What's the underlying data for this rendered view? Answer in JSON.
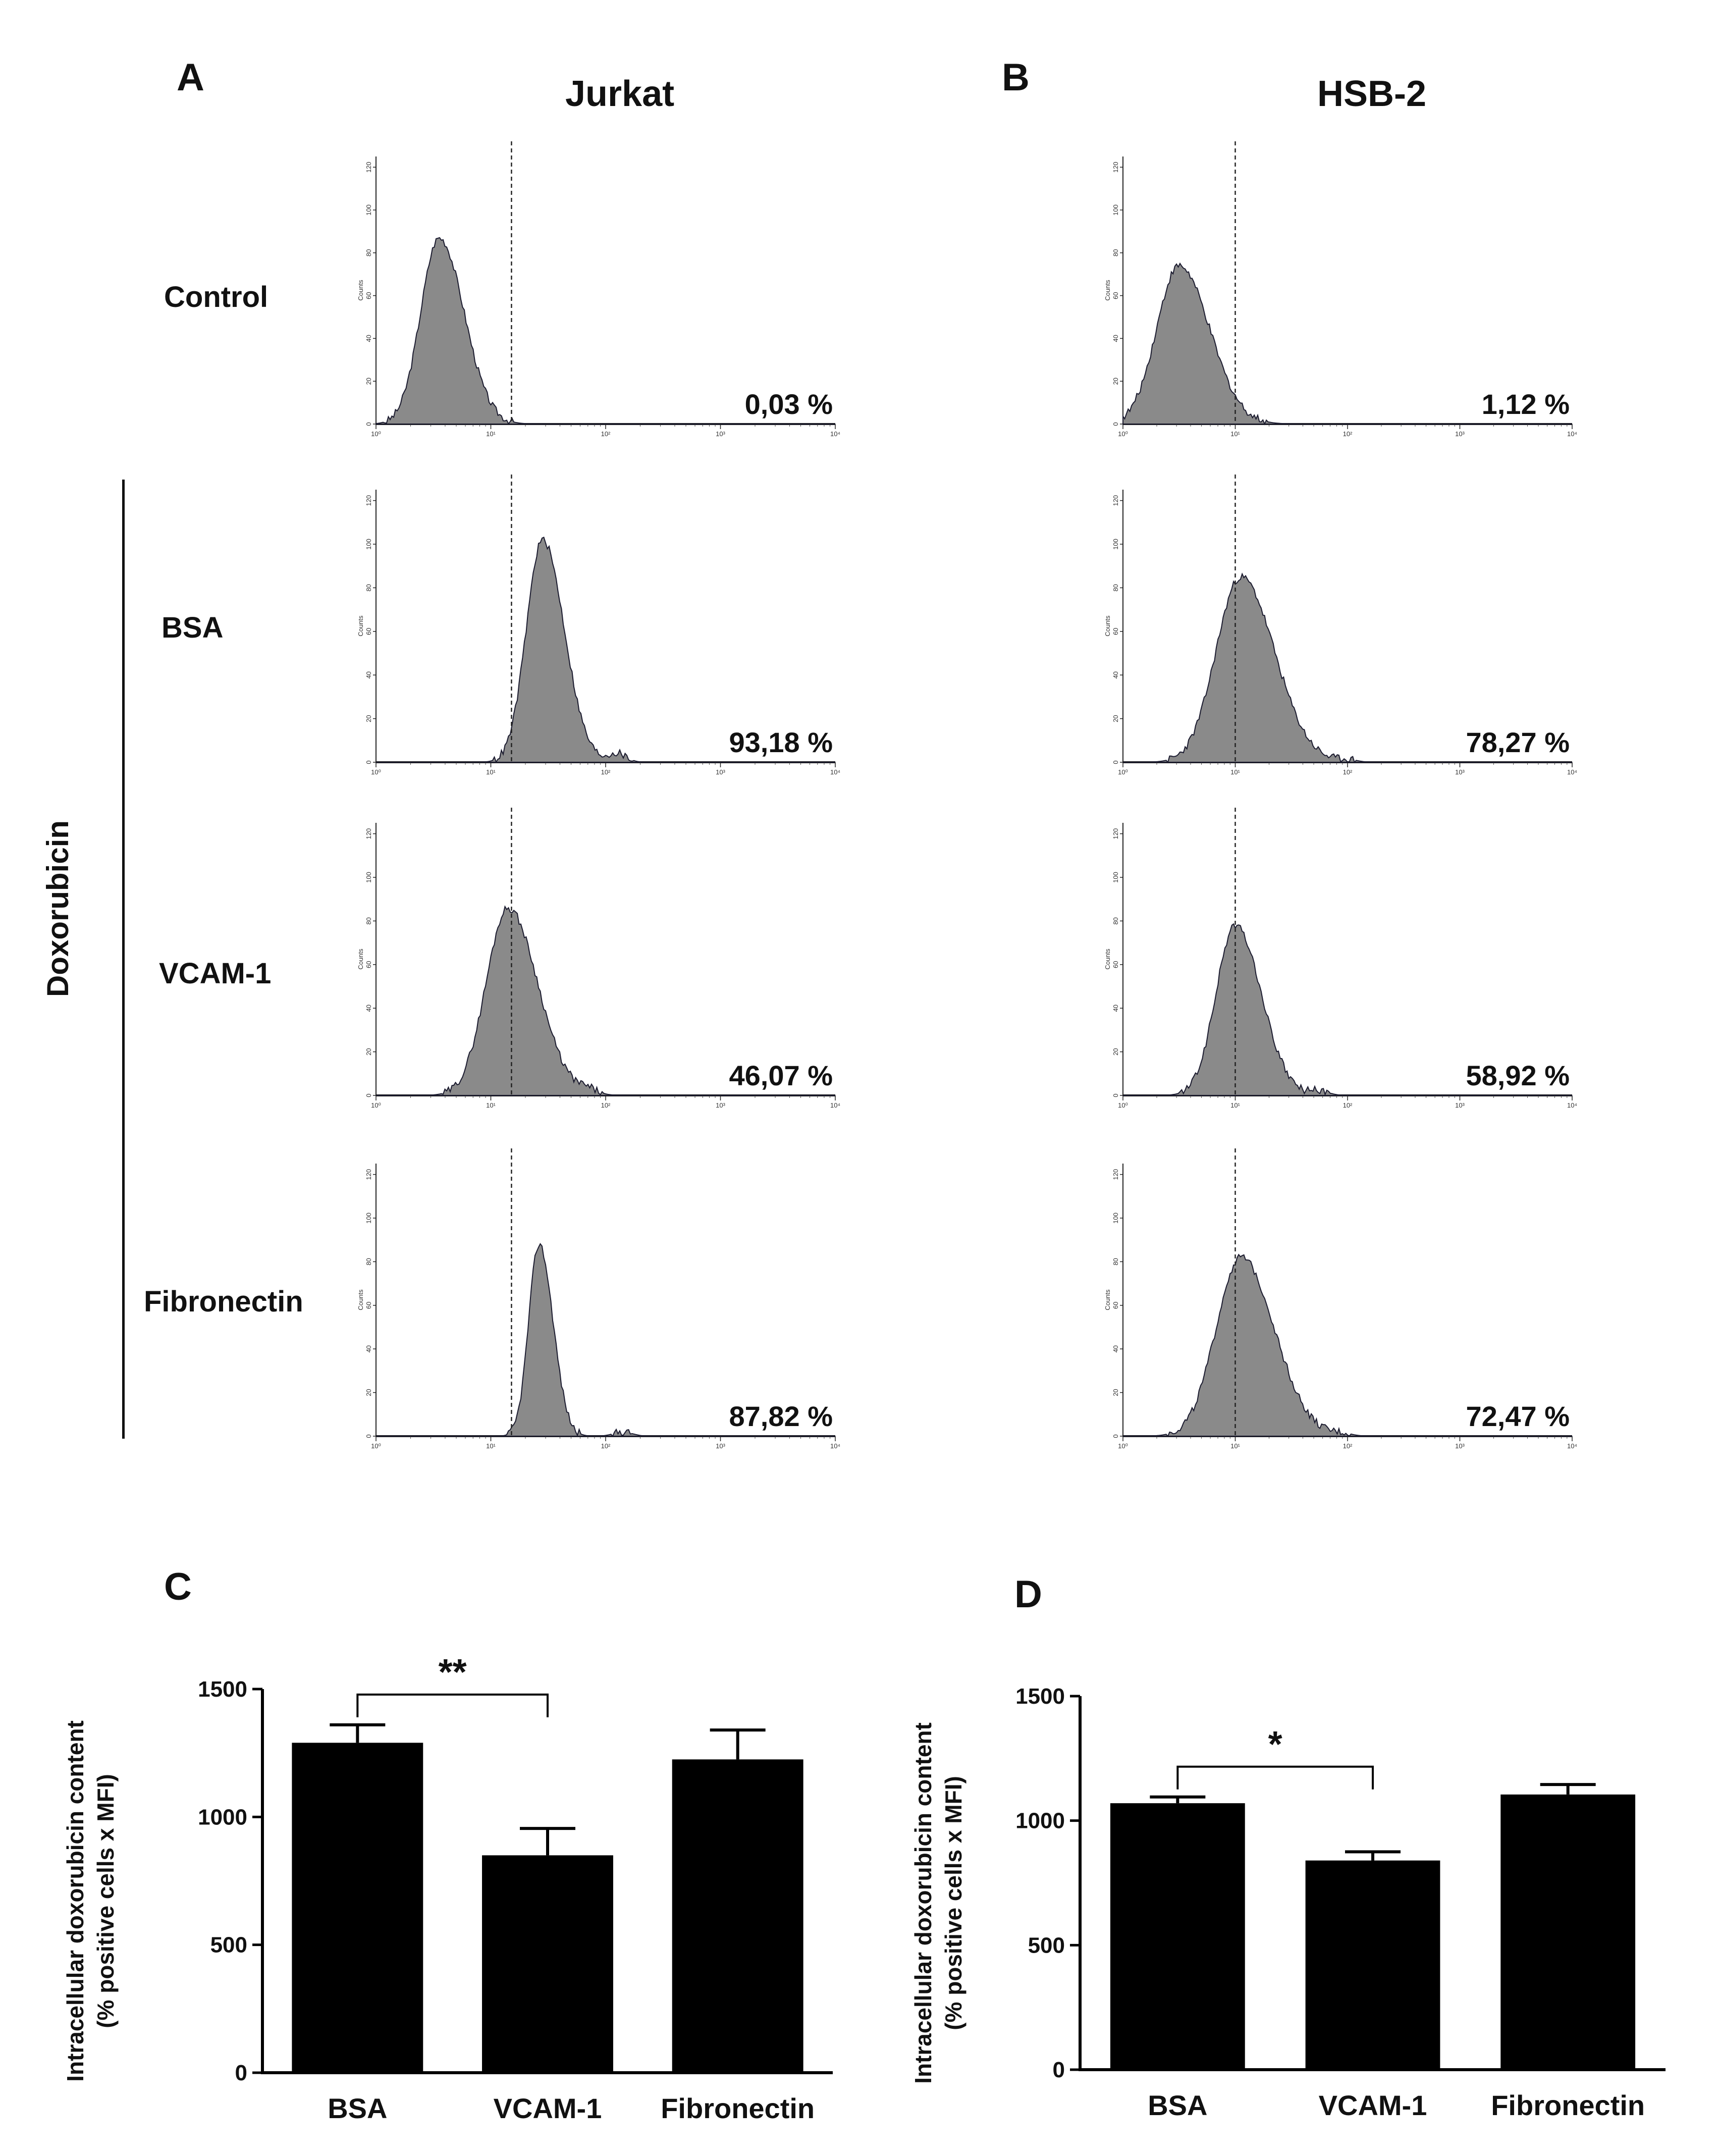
{
  "panel_letters": {
    "A": "A",
    "B": "B",
    "C": "C",
    "D": "D"
  },
  "flow": {
    "group_label": "Doxorubicin",
    "conditions": [
      "Control",
      "BSA",
      "VCAM-1",
      "Fibronectin"
    ],
    "x_ticks": [
      "10⁰",
      "10¹",
      "10²",
      "10³",
      "10⁴"
    ],
    "y_ticks": [
      "0",
      "20",
      "40",
      "60",
      "80",
      "100",
      "120"
    ],
    "y_label": "Counts",
    "cell_lines": [
      {
        "name": "Jurkat",
        "gate_log_position": 1.18,
        "percent_labels": [
          "0,03 %",
          "93,18 %",
          "46,07 %",
          "87,82 %"
        ],
        "histograms": [
          {
            "peak_log": 0.55,
            "width": 0.16,
            "height": 87,
            "tail_height": 0,
            "tail_log": 0
          },
          {
            "peak_log": 1.45,
            "width": 0.14,
            "height": 102,
            "tail_height": 4,
            "tail_log": 2.1
          },
          {
            "peak_log": 1.15,
            "width": 0.19,
            "height": 86,
            "tail_height": 2,
            "tail_log": 1.85
          },
          {
            "peak_log": 1.42,
            "width": 0.09,
            "height": 88,
            "tail_height": 2,
            "tail_log": 2.15
          }
        ]
      },
      {
        "name": "HSB-2",
        "gate_log_position": 1.0,
        "percent_labels": [
          "1,12 %",
          "78,27 %",
          "58,92 %",
          "72,47 %"
        ],
        "histograms": [
          {
            "peak_log": 0.5,
            "width": 0.2,
            "height": 74,
            "tail_height": 0,
            "tail_log": 0
          },
          {
            "peak_log": 1.05,
            "width": 0.22,
            "height": 85,
            "tail_height": 1,
            "tail_log": 2.0
          },
          {
            "peak_log": 1.0,
            "width": 0.17,
            "height": 78,
            "tail_height": 2,
            "tail_log": 1.75
          },
          {
            "peak_log": 1.05,
            "width": 0.22,
            "height": 82,
            "tail_height": 1,
            "tail_log": 1.95
          }
        ]
      }
    ]
  },
  "chart_data": [
    {
      "type": "bar",
      "panel": "C",
      "categories": [
        "BSA",
        "VCAM-1",
        "Fibronectin"
      ],
      "values": [
        1290,
        850,
        1225
      ],
      "errors": [
        70,
        105,
        115
      ],
      "ylabel_line1": "Intracellular doxorubicin content",
      "ylabel_line2": "(% positive cells x MFI)",
      "ylim": [
        0,
        1500
      ],
      "yticks": [
        0,
        500,
        1000,
        1500
      ],
      "significance": {
        "from": 0,
        "to": 1,
        "label": "**"
      },
      "bar_color": "#000000"
    },
    {
      "type": "bar",
      "panel": "D",
      "categories": [
        "BSA",
        "VCAM-1",
        "Fibronectin"
      ],
      "values": [
        1070,
        840,
        1105
      ],
      "errors": [
        25,
        35,
        40
      ],
      "ylabel_line1": "Intracellular doxorubicin content",
      "ylabel_line2": "(% positive cells x MFI)",
      "ylim": [
        0,
        1500
      ],
      "yticks": [
        0,
        500,
        1000,
        1500
      ],
      "significance": {
        "from": 0,
        "to": 1,
        "label": "*"
      },
      "bar_color": "#000000"
    }
  ]
}
